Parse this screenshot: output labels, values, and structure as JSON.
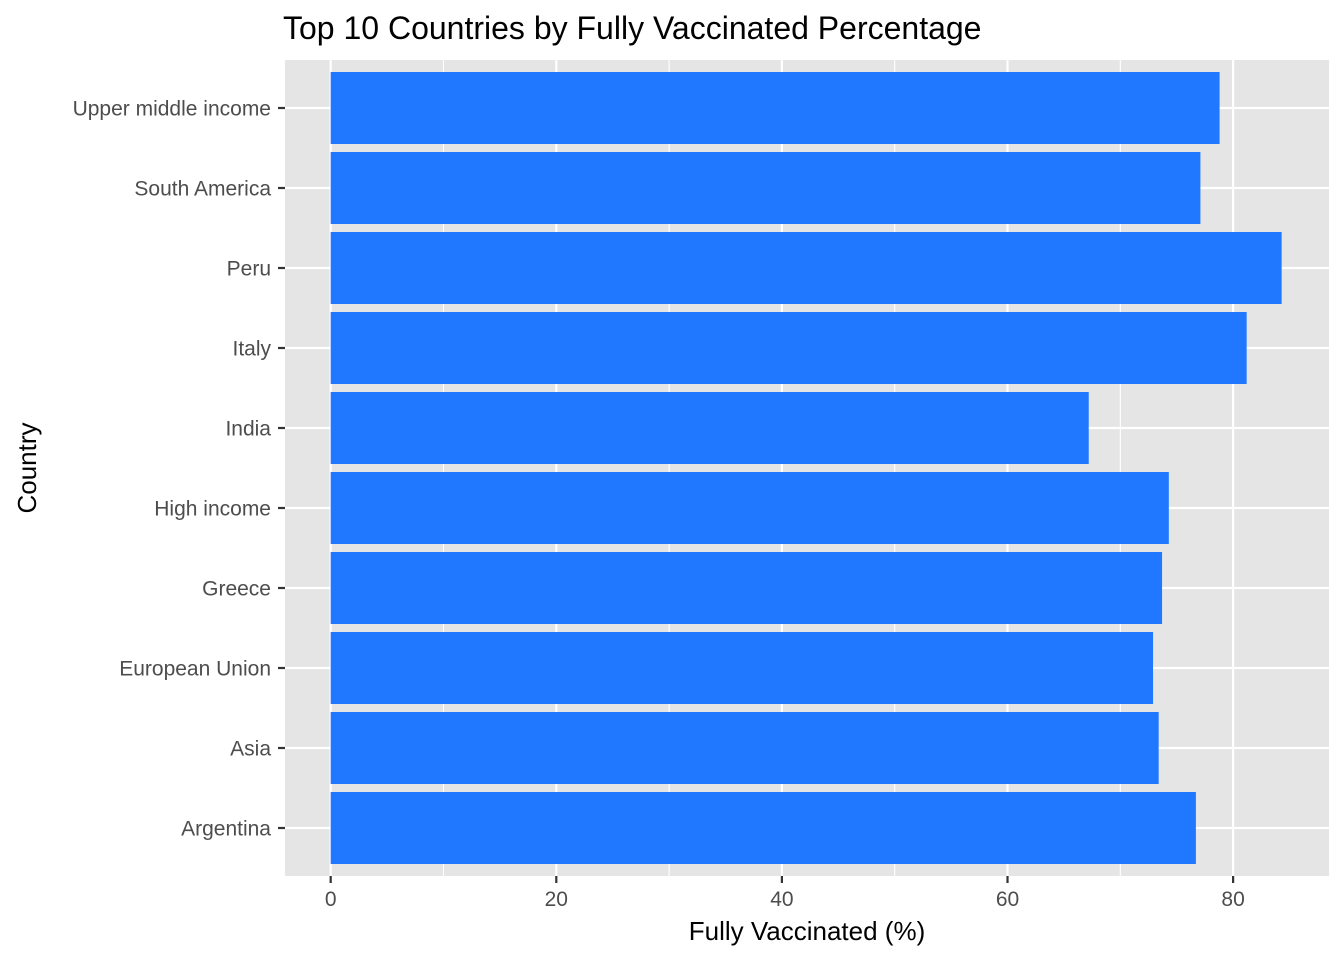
{
  "chart_data": {
    "type": "bar",
    "orientation": "horizontal",
    "title": "Top 10 Countries by Fully Vaccinated Percentage",
    "xlabel": "Fully Vaccinated (%)",
    "ylabel": "Country",
    "categories": [
      "Upper middle income",
      "South America",
      "Peru",
      "Italy",
      "India",
      "High income",
      "Greece",
      "European Union",
      "Asia",
      "Argentina"
    ],
    "values": [
      78.8,
      77.1,
      84.3,
      81.2,
      67.2,
      74.3,
      73.7,
      72.9,
      73.4,
      76.7
    ],
    "xlim": [
      -4.05,
      88.5
    ],
    "xticks": [
      0,
      20,
      40,
      60,
      80
    ],
    "grid": true,
    "legend": "none",
    "colors": {
      "bar": "#1f78ff",
      "panel": "#e5e5e5",
      "grid": "#ffffff"
    }
  }
}
